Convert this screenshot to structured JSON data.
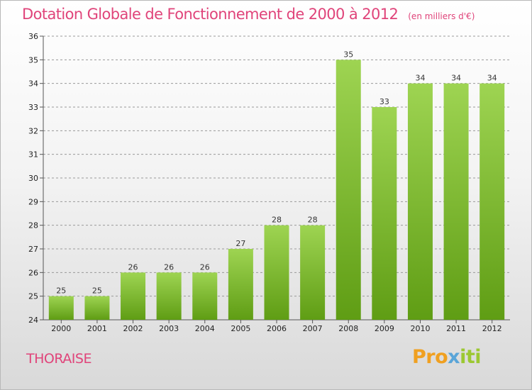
{
  "chart_data": {
    "type": "bar",
    "title": "Dotation Globale de Fonctionnement de 2000 à 2012",
    "subtitle": "(en milliers d'€)",
    "categories": [
      "2000",
      "2001",
      "2002",
      "2003",
      "2004",
      "2005",
      "2006",
      "2007",
      "2008",
      "2009",
      "2010",
      "2011",
      "2012"
    ],
    "values": [
      25,
      25,
      26,
      26,
      26,
      27,
      28,
      28,
      35,
      33,
      34,
      34,
      34
    ],
    "ylim": [
      24,
      36
    ],
    "yticks": [
      "24",
      "25",
      "26",
      "27",
      "28",
      "29",
      "30",
      "31",
      "32",
      "33",
      "34",
      "35",
      "36"
    ],
    "grid": true,
    "colors": {
      "bar_top": "#9ed452",
      "bar_bottom": "#5f9d14",
      "grid": "#999999"
    }
  },
  "place_name": "THORAISE",
  "logo": {
    "part1": "Pro",
    "part2": "x",
    "part3": "iti"
  }
}
